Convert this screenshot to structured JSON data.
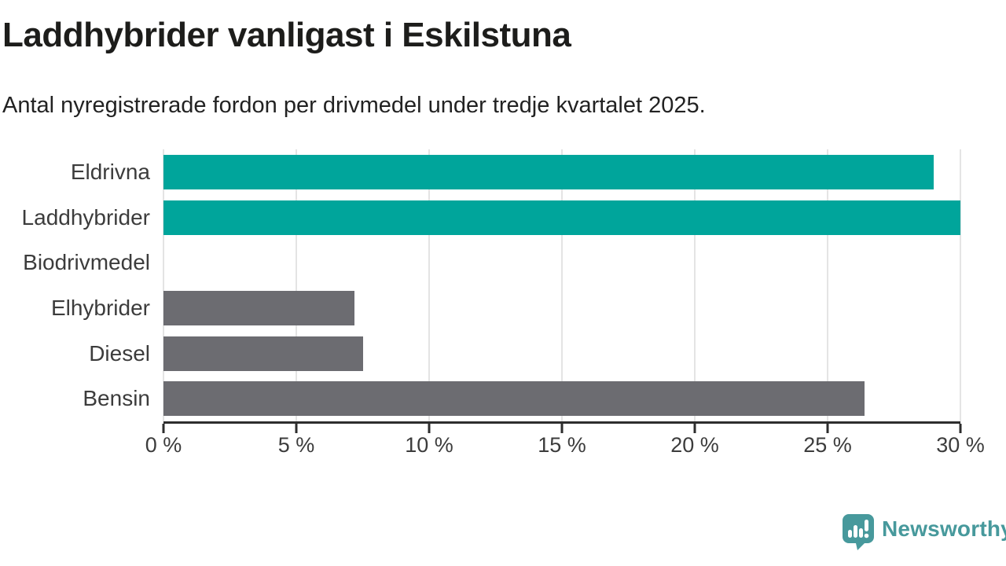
{
  "header": {
    "title": "Laddhybrider vanligast i Eskilstuna",
    "subtitle": "Antal nyregistrerade fordon per drivmedel under tredje kvartalet 2025."
  },
  "chart_data": {
    "type": "bar",
    "orientation": "horizontal",
    "title": "Laddhybrider vanligast i Eskilstuna",
    "subtitle": "Antal nyregistrerade fordon per drivmedel under tredje kvartalet 2025.",
    "categories": [
      "Eldrivna",
      "Laddhybrider",
      "Biodrivmedel",
      "Elhybrider",
      "Diesel",
      "Bensin"
    ],
    "values": [
      29.0,
      30.0,
      0,
      7.2,
      7.5,
      26.4
    ],
    "unit": "%",
    "xlim": [
      0,
      30
    ],
    "x_ticks": [
      0,
      5,
      10,
      15,
      20,
      25,
      30
    ],
    "x_tick_labels": [
      "0 %",
      "5 %",
      "10 %",
      "15 %",
      "20 %",
      "25 %",
      "30 %"
    ],
    "grid": "vertical-gridlines",
    "legend": "none",
    "bar_colors": [
      "#00a59b",
      "#00a59b",
      "#6c6c71",
      "#6c6c71",
      "#6c6c71",
      "#6c6c71"
    ]
  },
  "footer": {
    "brand": "Newsworthy"
  },
  "colors": {
    "accent_teal": "#00a59b",
    "bar_gray": "#6c6c71",
    "brand_teal": "#47999c",
    "gridline": "#e4e4e4",
    "axis": "#2d2d2d",
    "title_text": "#1d1d1b",
    "label_text": "#3c3c3c"
  }
}
